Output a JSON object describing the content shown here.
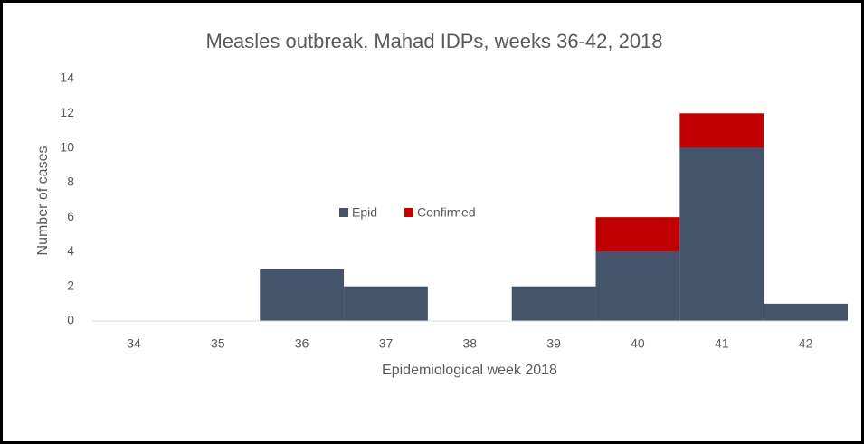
{
  "chart_data": {
    "type": "stacked_bar",
    "title": "Measles outbreak, Mahad IDPs, weeks 36-42, 2018",
    "x_label": "Epidemiological week 2018",
    "y_label": "Number of cases",
    "categories": [
      "34",
      "35",
      "36",
      "37",
      "38",
      "39",
      "40",
      "41",
      "42"
    ],
    "series": [
      {
        "name": "Epid",
        "color": "#44546a",
        "values": [
          0,
          0,
          3,
          2,
          0,
          2,
          4,
          10,
          1
        ]
      },
      {
        "name": "Confirmed",
        "color": "#c00000",
        "values": [
          0,
          0,
          0,
          0,
          0,
          0,
          2,
          2,
          0
        ]
      }
    ],
    "ylim": [
      0,
      14
    ],
    "yticks": [
      0,
      2,
      4,
      6,
      8,
      10,
      12,
      14
    ],
    "grid": false,
    "legend": "center"
  }
}
